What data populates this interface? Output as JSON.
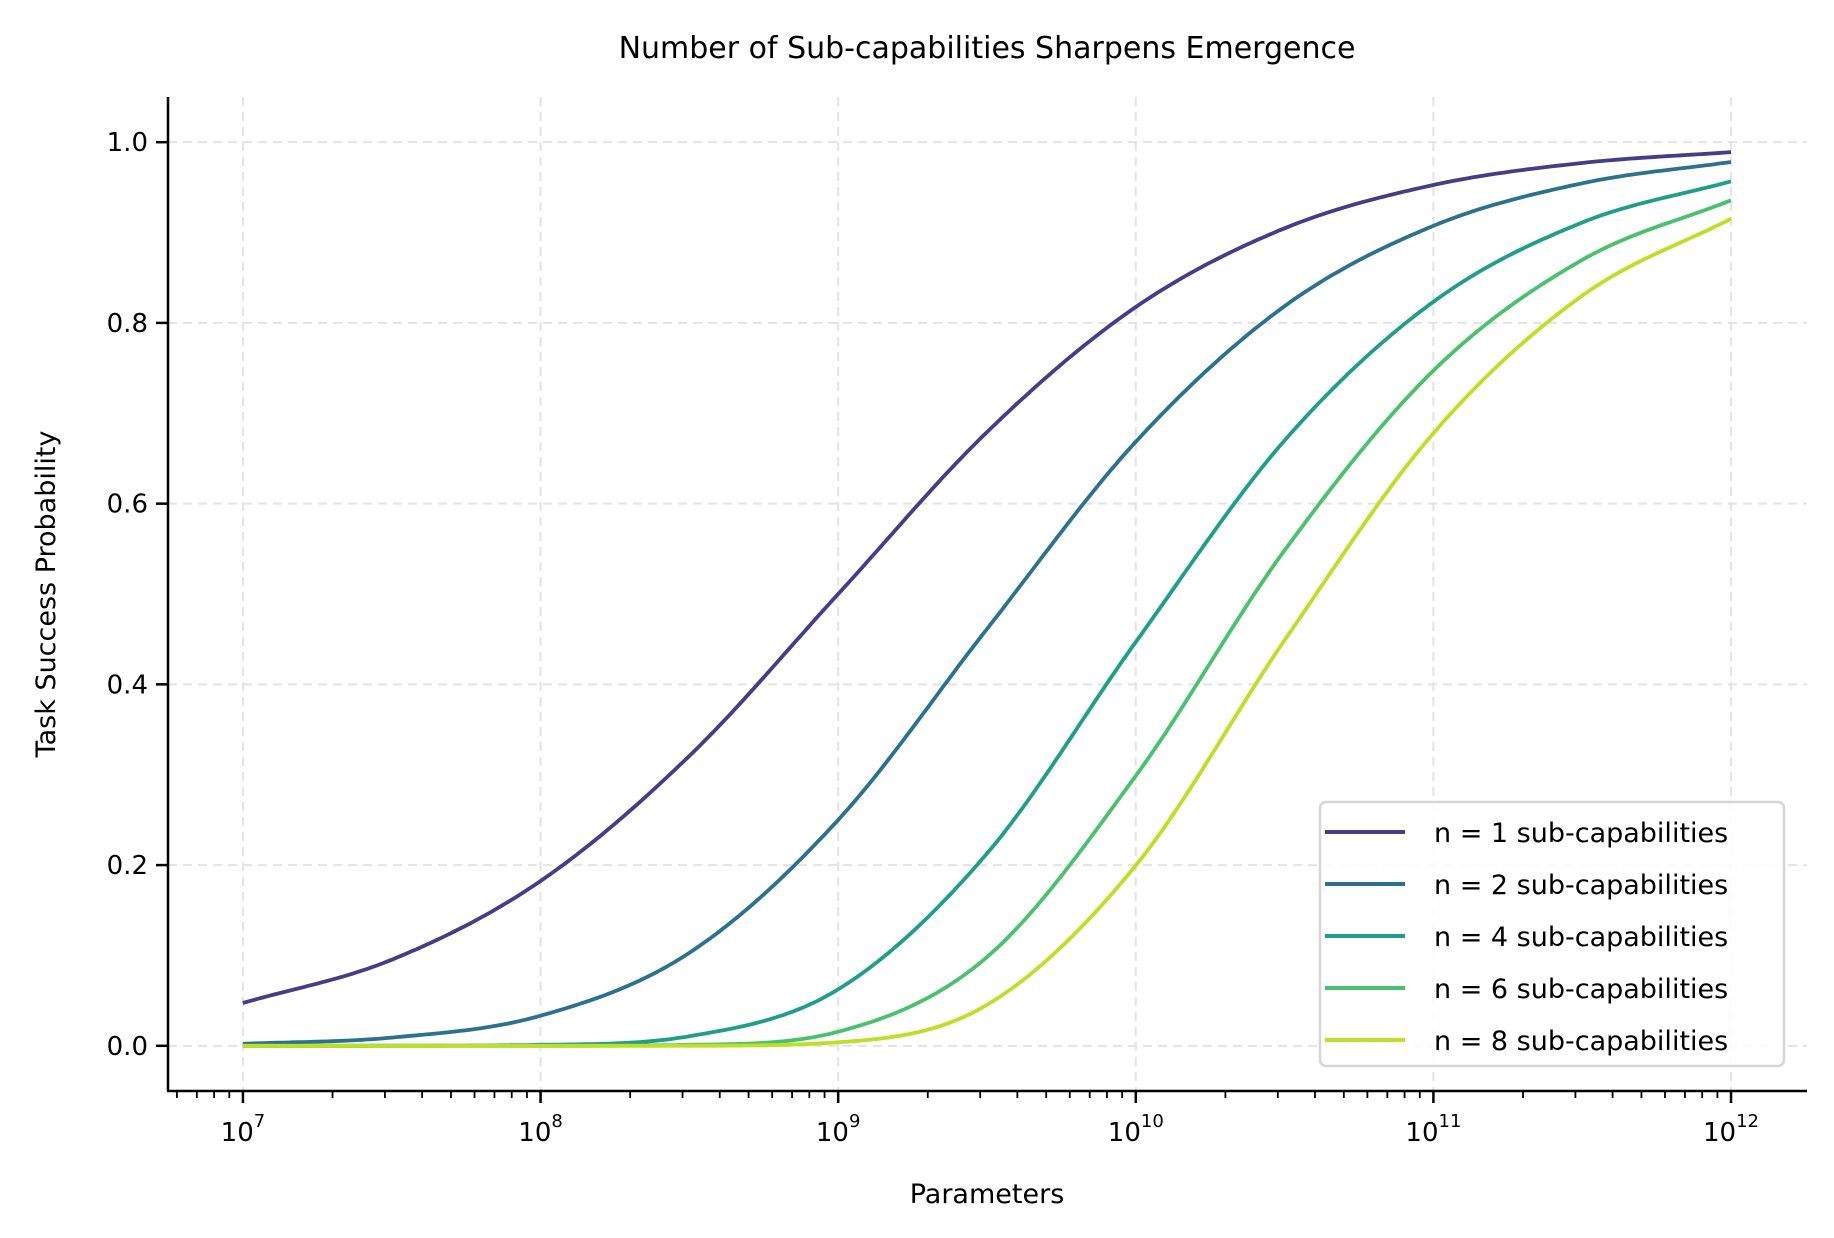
{
  "chart_data": {
    "type": "line",
    "title": "Number of Sub-capabilities Sharpens Emergence",
    "xlabel": "Parameters",
    "ylabel": "Task Success Probability",
    "xscale": "log",
    "xlim": [
      5600000.0,
      1800000000000.0
    ],
    "ylim": [
      -0.05,
      1.05
    ],
    "grid": true,
    "legend_position": "lower-right",
    "x_ticks": [
      10000000.0,
      100000000.0,
      1000000000.0,
      10000000000.0,
      100000000000.0,
      1000000000000.0
    ],
    "x_tick_labels": [
      {
        "base": "10",
        "exp": "7"
      },
      {
        "base": "10",
        "exp": "8"
      },
      {
        "base": "10",
        "exp": "9"
      },
      {
        "base": "10",
        "exp": "10"
      },
      {
        "base": "10",
        "exp": "11"
      },
      {
        "base": "10",
        "exp": "12"
      }
    ],
    "y_ticks": [
      0.0,
      0.2,
      0.4,
      0.6,
      0.8,
      1.0
    ],
    "y_tick_labels": [
      "0.0",
      "0.2",
      "0.4",
      "0.6",
      "0.8",
      "1.0"
    ],
    "x": [
      10000000.0,
      31620000.0,
      100000000.0,
      316200000.0,
      1000000000.0,
      3162000000.0,
      10000000000.0,
      31620000000.0,
      100000000000.0,
      316200000000.0,
      1000000000000.0
    ],
    "series": [
      {
        "name": "n = 1 sub-capabilities",
        "color": "#433e85",
        "values": [
          0.0474,
          0.0953,
          0.1824,
          0.3208,
          0.5,
          0.6792,
          0.8176,
          0.9047,
          0.9526,
          0.977,
          0.989
        ]
      },
      {
        "name": "n = 2 sub-capabilities",
        "color": "#2c718e",
        "values": [
          0.0022,
          0.0091,
          0.0333,
          0.1029,
          0.25,
          0.4613,
          0.6685,
          0.8185,
          0.9074,
          0.9545,
          0.9781
        ]
      },
      {
        "name": "n = 4 sub-capabilities",
        "color": "#1f9e89",
        "values": [
          0.0,
          0.0001,
          0.0011,
          0.0106,
          0.0625,
          0.2128,
          0.4469,
          0.6699,
          0.8234,
          0.9111,
          0.9567
        ]
      },
      {
        "name": "n = 6 sub-capabilities",
        "color": "#4ac16d",
        "values": [
          0.0,
          0.0,
          0.0,
          0.0011,
          0.0156,
          0.0982,
          0.2988,
          0.5483,
          0.7472,
          0.8697,
          0.9357
        ]
      },
      {
        "name": "n = 8 sub-capabilities",
        "color": "#bddf26",
        "values": [
          0.0,
          0.0,
          0.0,
          0.0001,
          0.0039,
          0.0453,
          0.1997,
          0.4488,
          0.678,
          0.8301,
          0.9153
        ]
      }
    ]
  }
}
